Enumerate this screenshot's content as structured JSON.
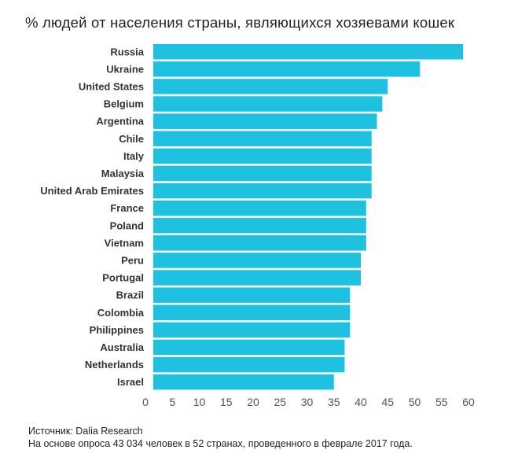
{
  "chart_data": {
    "type": "bar",
    "orientation": "horizontal",
    "title": "% людей от населения страны, являющихся хозяевами кошек",
    "categories": [
      "Russia",
      "Ukraine",
      "United States",
      "Belgium",
      "Argentina",
      "Chile",
      "Italy",
      "Malaysia",
      "United Arab Emirates",
      "France",
      "Poland",
      "Vietnam",
      "Peru",
      "Portugal",
      "Brazil",
      "Colombia",
      "Philippines",
      "Australia",
      "Netherlands",
      "Israel"
    ],
    "values": [
      59,
      51,
      45,
      44,
      43,
      42,
      42,
      42,
      42,
      41,
      41,
      41,
      40,
      40,
      38,
      38,
      38,
      37,
      37,
      35
    ],
    "xlim": [
      0,
      60
    ],
    "xticks": [
      0,
      5,
      10,
      15,
      20,
      25,
      30,
      35,
      40,
      45,
      50,
      55,
      60
    ],
    "bar_color": "#1FC1E0",
    "grid": false
  },
  "source_line": "Источник: Dalia Research",
  "note_line": "На основе опроса 43 034 человек в 52 странах, проведенного в феврале 2017 года."
}
